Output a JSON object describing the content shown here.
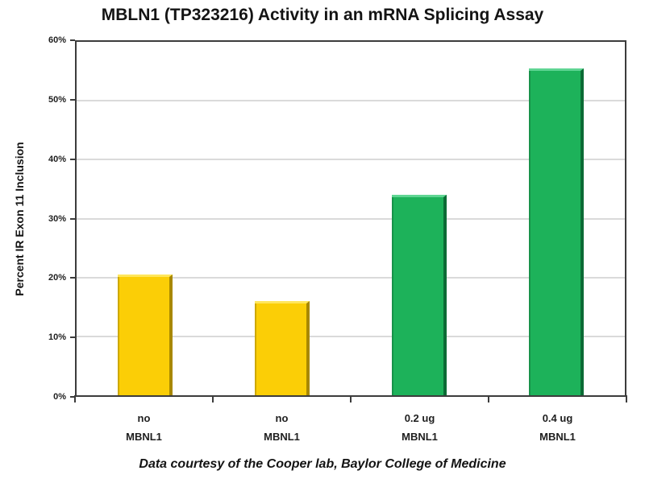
{
  "chart_data": {
    "type": "bar",
    "title": "MBLN1 (TP323216) Activity in an mRNA Splicing Assay",
    "ylabel": "Percent IR Exon 11 Inclusion",
    "xlabel": "",
    "caption": "Data courtesy of the Cooper lab, Baylor College of Medicine",
    "categories": [
      [
        "no",
        "MBNL1"
      ],
      [
        "no",
        "MBNL1"
      ],
      [
        "0.2 ug",
        "MBNL1"
      ],
      [
        "0.4 ug",
        "MBNL1"
      ]
    ],
    "values": [
      20.5,
      16,
      34,
      55.5
    ],
    "unit": "%",
    "bar_color_keys": [
      "gold",
      "gold",
      "green",
      "green"
    ],
    "palette": {
      "gold": {
        "fill": "#FBCE06",
        "light": "#FFE65C",
        "dark": "#A88800"
      },
      "green": {
        "fill": "#1DB25A",
        "light": "#5FD593",
        "dark": "#0C6B35"
      }
    },
    "ylim": [
      0,
      60
    ],
    "ytick_step": 10,
    "ytick_labels": [
      "0%",
      "10%",
      "20%",
      "30%",
      "40%",
      "50%",
      "60%"
    ],
    "grid": true,
    "legend": false,
    "axis_color": "#3c3c3c",
    "gridline_color": "#b4b4b4"
  }
}
